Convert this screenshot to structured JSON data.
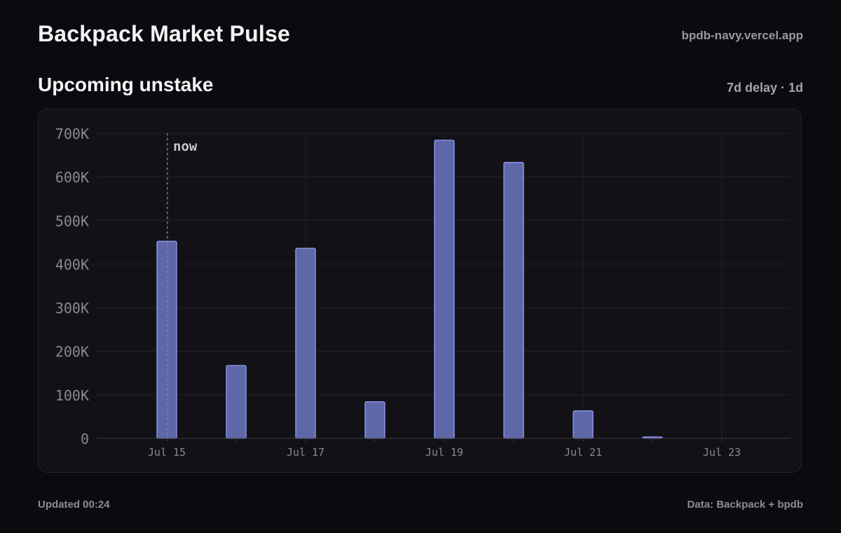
{
  "header": {
    "title": "Backpack Market Pulse",
    "domain": "bpdb-navy.vercel.app"
  },
  "section": {
    "title": "Upcoming unstake",
    "meta": "7d delay · 1d"
  },
  "footer": {
    "updated": "Updated 00:24",
    "source": "Data: Backpack + bpdb"
  },
  "chart_data": {
    "type": "bar",
    "title": "Upcoming unstake",
    "xlabel": "",
    "ylabel": "",
    "categories": [
      "Jul 15",
      "Jul 16",
      "Jul 17",
      "Jul 18",
      "Jul 19",
      "Jul 20",
      "Jul 21",
      "Jul 22",
      "Jul 23"
    ],
    "x_tick_labels": [
      "Jul 15",
      "Jul 17",
      "Jul 19",
      "Jul 21",
      "Jul 23"
    ],
    "values": [
      452000,
      167000,
      436000,
      84000,
      684000,
      633000,
      63000,
      3000,
      0
    ],
    "ylim": [
      0,
      700000
    ],
    "y_ticks": [
      0,
      100000,
      200000,
      300000,
      400000,
      500000,
      600000,
      700000
    ],
    "y_tick_labels": [
      "0",
      "100K",
      "200K",
      "300K",
      "400K",
      "500K",
      "600K",
      "700K"
    ],
    "now_marker": {
      "date": "Jul 15",
      "label": "now"
    },
    "grid": true,
    "colors": {
      "bar_fill": "#5e67a8",
      "bar_stroke": "#8e98f0",
      "grid": "#25242b",
      "tick_text": "#8a8892",
      "now_text": "#c6c4cc"
    }
  }
}
